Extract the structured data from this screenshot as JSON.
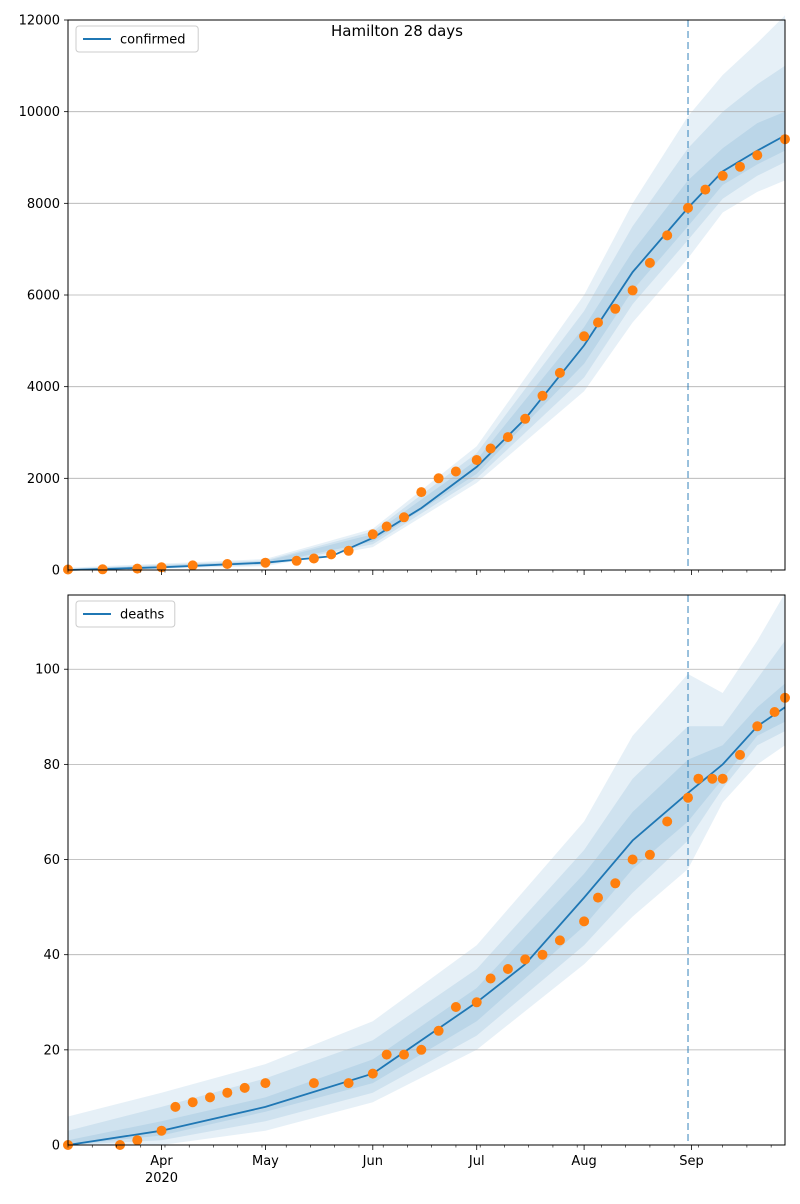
{
  "figure": {
    "suptitle": "Hamilton 28 days"
  },
  "x_axis": {
    "tick_labels": [
      "Apr",
      "May",
      "Jun",
      "Jul",
      "Aug",
      "Sep"
    ],
    "tick_dates": [
      "2020-04-01",
      "2020-05-01",
      "2020-06-01",
      "2020-07-01",
      "2020-08-01",
      "2020-09-01"
    ],
    "year_label": "2020",
    "range": [
      "2020-03-05",
      "2020-09-28"
    ]
  },
  "forecast_start": "2020-08-31",
  "colors": {
    "model": "#1f77b4",
    "observed": "#ff7f0e",
    "band": "#1f77b4",
    "grid": "#b0b0b0"
  },
  "chart_data": [
    {
      "type": "line",
      "legend": "confirmed",
      "legend_position": "upper-left",
      "grid": "horizontal",
      "ylim": [
        0,
        12000
      ],
      "yticks": [
        0,
        2000,
        4000,
        6000,
        8000,
        10000,
        12000
      ],
      "model_line": [
        [
          "2020-03-05",
          0
        ],
        [
          "2020-04-01",
          60
        ],
        [
          "2020-05-01",
          160
        ],
        [
          "2020-05-20",
          300
        ],
        [
          "2020-06-01",
          700
        ],
        [
          "2020-06-15",
          1350
        ],
        [
          "2020-07-01",
          2250
        ],
        [
          "2020-07-15",
          3300
        ],
        [
          "2020-08-01",
          4900
        ],
        [
          "2020-08-15",
          6500
        ],
        [
          "2020-08-31",
          7900
        ],
        [
          "2020-09-10",
          8700
        ],
        [
          "2020-09-20",
          9150
        ],
        [
          "2020-09-28",
          9480
        ]
      ],
      "bands": [
        {
          "dates": [
            "2020-03-05",
            "2020-05-01",
            "2020-06-01",
            "2020-07-01",
            "2020-08-01",
            "2020-08-15",
            "2020-08-31",
            "2020-09-10",
            "2020-09-20",
            "2020-09-28"
          ],
          "lower": [
            0,
            80,
            500,
            1900,
            3900,
            5400,
            6800,
            7800,
            8250,
            8500
          ],
          "upper": [
            50,
            240,
            900,
            2700,
            6000,
            8000,
            9900,
            10800,
            11500,
            12100
          ]
        },
        {
          "dates": [
            "2020-03-05",
            "2020-05-01",
            "2020-06-01",
            "2020-07-01",
            "2020-08-01",
            "2020-08-15",
            "2020-08-31",
            "2020-09-10",
            "2020-09-20",
            "2020-09-28"
          ],
          "lower": [
            0,
            110,
            560,
            2000,
            4200,
            5800,
            7200,
            8100,
            8600,
            8900
          ],
          "upper": [
            30,
            210,
            840,
            2550,
            5650,
            7500,
            9200,
            10000,
            10600,
            11000
          ]
        },
        {
          "dates": [
            "2020-03-05",
            "2020-05-01",
            "2020-06-01",
            "2020-07-01",
            "2020-08-01",
            "2020-08-15",
            "2020-08-31",
            "2020-09-10",
            "2020-09-20",
            "2020-09-28"
          ],
          "lower": [
            0,
            130,
            620,
            2100,
            4500,
            6100,
            7500,
            8400,
            8850,
            9150
          ],
          "upper": [
            15,
            190,
            780,
            2400,
            5300,
            6950,
            8500,
            9200,
            9750,
            10000
          ]
        }
      ],
      "observed": [
        [
          "2020-03-05",
          10
        ],
        [
          "2020-03-15",
          15
        ],
        [
          "2020-03-25",
          30
        ],
        [
          "2020-04-01",
          60
        ],
        [
          "2020-04-10",
          100
        ],
        [
          "2020-04-20",
          130
        ],
        [
          "2020-05-01",
          160
        ],
        [
          "2020-05-10",
          200
        ],
        [
          "2020-05-15",
          250
        ],
        [
          "2020-05-20",
          340
        ],
        [
          "2020-05-25",
          420
        ],
        [
          "2020-06-01",
          780
        ],
        [
          "2020-06-05",
          950
        ],
        [
          "2020-06-10",
          1150
        ],
        [
          "2020-06-15",
          1700
        ],
        [
          "2020-06-20",
          2000
        ],
        [
          "2020-06-25",
          2150
        ],
        [
          "2020-07-01",
          2400
        ],
        [
          "2020-07-05",
          2650
        ],
        [
          "2020-07-10",
          2900
        ],
        [
          "2020-07-15",
          3300
        ],
        [
          "2020-07-20",
          3800
        ],
        [
          "2020-07-25",
          4300
        ],
        [
          "2020-08-01",
          5100
        ],
        [
          "2020-08-05",
          5400
        ],
        [
          "2020-08-10",
          5700
        ],
        [
          "2020-08-15",
          6100
        ],
        [
          "2020-08-20",
          6700
        ],
        [
          "2020-08-25",
          7300
        ],
        [
          "2020-08-31",
          7900
        ],
        [
          "2020-09-05",
          8300
        ],
        [
          "2020-09-10",
          8600
        ],
        [
          "2020-09-15",
          8800
        ],
        [
          "2020-09-20",
          9050
        ],
        [
          "2020-09-28",
          9400
        ]
      ]
    },
    {
      "type": "line",
      "legend": "deaths",
      "legend_position": "upper-left",
      "grid": "horizontal",
      "ylim": [
        0,
        115.6
      ],
      "yticks": [
        0,
        20,
        40,
        60,
        80,
        100
      ],
      "model_line": [
        [
          "2020-03-05",
          0
        ],
        [
          "2020-04-01",
          3
        ],
        [
          "2020-05-01",
          8
        ],
        [
          "2020-06-01",
          15
        ],
        [
          "2020-07-01",
          30
        ],
        [
          "2020-07-15",
          38
        ],
        [
          "2020-08-01",
          52
        ],
        [
          "2020-08-15",
          64
        ],
        [
          "2020-08-31",
          74
        ],
        [
          "2020-09-10",
          80
        ],
        [
          "2020-09-20",
          88
        ],
        [
          "2020-09-28",
          92
        ]
      ],
      "bands": [
        {
          "dates": [
            "2020-03-05",
            "2020-04-01",
            "2020-05-01",
            "2020-06-01",
            "2020-07-01",
            "2020-08-01",
            "2020-08-15",
            "2020-08-31",
            "2020-09-10",
            "2020-09-20",
            "2020-09-28"
          ],
          "lower": [
            0,
            0,
            3,
            9,
            20,
            38,
            48,
            58,
            72,
            80,
            84
          ],
          "upper": [
            6,
            11,
            17,
            26,
            42,
            68,
            86,
            99,
            95,
            106,
            116
          ]
        },
        {
          "dates": [
            "2020-03-05",
            "2020-04-01",
            "2020-05-01",
            "2020-06-01",
            "2020-07-01",
            "2020-08-01",
            "2020-08-15",
            "2020-08-31",
            "2020-09-10",
            "2020-09-20",
            "2020-09-28"
          ],
          "lower": [
            0,
            1,
            5,
            11,
            23,
            42,
            53,
            64,
            75,
            84,
            87
          ],
          "upper": [
            3,
            8,
            14,
            22,
            37,
            62,
            77,
            88,
            88,
            98,
            106
          ]
        },
        {
          "dates": [
            "2020-03-05",
            "2020-04-01",
            "2020-05-01",
            "2020-06-01",
            "2020-07-01",
            "2020-08-01",
            "2020-08-15",
            "2020-08-31",
            "2020-09-10",
            "2020-09-20",
            "2020-09-28"
          ],
          "lower": [
            0,
            2,
            7,
            13,
            26,
            46,
            58,
            68,
            77,
            86,
            89
          ],
          "upper": [
            1,
            5,
            10,
            18,
            33,
            57,
            70,
            81,
            84,
            92,
            97
          ]
        }
      ],
      "observed": [
        [
          "2020-03-05",
          0
        ],
        [
          "2020-03-20",
          0
        ],
        [
          "2020-03-25",
          1
        ],
        [
          "2020-04-01",
          3
        ],
        [
          "2020-04-05",
          8
        ],
        [
          "2020-04-10",
          9
        ],
        [
          "2020-04-15",
          10
        ],
        [
          "2020-04-20",
          11
        ],
        [
          "2020-04-25",
          12
        ],
        [
          "2020-05-01",
          13
        ],
        [
          "2020-05-15",
          13
        ],
        [
          "2020-05-25",
          13
        ],
        [
          "2020-06-01",
          15
        ],
        [
          "2020-06-05",
          19
        ],
        [
          "2020-06-10",
          19
        ],
        [
          "2020-06-15",
          20
        ],
        [
          "2020-06-20",
          24
        ],
        [
          "2020-06-25",
          29
        ],
        [
          "2020-07-01",
          30
        ],
        [
          "2020-07-05",
          35
        ],
        [
          "2020-07-10",
          37
        ],
        [
          "2020-07-15",
          39
        ],
        [
          "2020-07-20",
          40
        ],
        [
          "2020-07-25",
          43
        ],
        [
          "2020-08-01",
          47
        ],
        [
          "2020-08-05",
          52
        ],
        [
          "2020-08-10",
          55
        ],
        [
          "2020-08-15",
          60
        ],
        [
          "2020-08-20",
          61
        ],
        [
          "2020-08-25",
          68
        ],
        [
          "2020-08-31",
          73
        ],
        [
          "2020-09-03",
          77
        ],
        [
          "2020-09-07",
          77
        ],
        [
          "2020-09-10",
          77
        ],
        [
          "2020-09-15",
          82
        ],
        [
          "2020-09-20",
          88
        ],
        [
          "2020-09-25",
          91
        ],
        [
          "2020-09-28",
          94
        ]
      ]
    }
  ]
}
